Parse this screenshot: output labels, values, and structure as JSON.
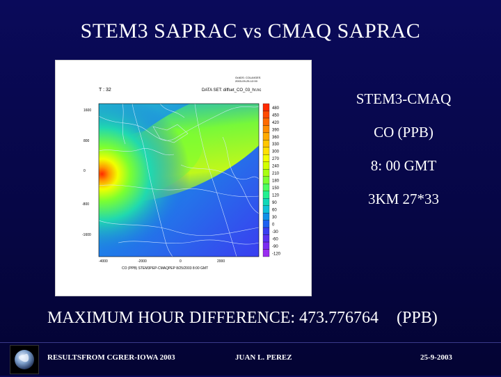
{
  "slide": {
    "title": "STEM3 SAPRAC vs CMAQ SAPRAC"
  },
  "map": {
    "header_left": "T : 32",
    "header_mid": "DATA SET: diffset_CO_03_hr.nc",
    "header_right_lines": [
      "GrADS: COLA/IGES",
      "2003-09-25-12:00"
    ],
    "y_ticks": [
      "1600",
      "800",
      "0",
      "-800",
      "-1600"
    ],
    "x_ticks": [
      "-4000",
      "-2000",
      "0",
      "2000"
    ],
    "colorbar": [
      "480",
      "450",
      "420",
      "390",
      "360",
      "330",
      "300",
      "270",
      "240",
      "210",
      "180",
      "150",
      "120",
      "90",
      "60",
      "30",
      "0",
      "-30",
      "-60",
      "-90",
      "-120"
    ],
    "colorbar_colors": [
      "#ff2a00",
      "#ff4a00",
      "#ff6a00",
      "#ff8c00",
      "#ffaa00",
      "#ffc600",
      "#ffe000",
      "#f2ff00",
      "#d2ff00",
      "#a8ff10",
      "#7cff30",
      "#4cff60",
      "#22f090",
      "#10d8b8",
      "#10c0d8",
      "#1090e8",
      "#1e60f0",
      "#3a3ef0",
      "#5a30f0",
      "#7a2cf0",
      "#9a2cf0"
    ],
    "caption": "CO (PPB) STEM3PEP-CMAQPEP  8/25/2003  8:00 GMT"
  },
  "info": {
    "lines": [
      "STEM3-CMAQ",
      "CO (PPB)",
      "8: 00 GMT",
      "3KM 27*33"
    ]
  },
  "stats": {
    "label": "MAXIMUM HOUR DIFFERENCE: 473.776764",
    "unit": "(PPB)"
  },
  "footer": {
    "left": "RESULTSFROM CGRER-IOWA 2003",
    "center": "JUAN L. PEREZ",
    "right": "25-9-2003",
    "logo_icon": "globe-icon"
  }
}
